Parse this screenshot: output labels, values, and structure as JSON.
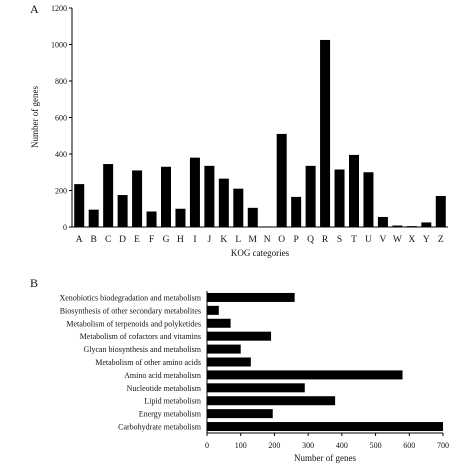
{
  "chart_data": [
    {
      "panel_label": "A",
      "type": "bar",
      "orientation": "vertical",
      "xlabel": "KOG categories",
      "ylabel": "Number of genes",
      "ylim": [
        0,
        1200
      ],
      "yticks": [
        0,
        200,
        400,
        600,
        800,
        1000,
        1200
      ],
      "categories": [
        "A",
        "B",
        "C",
        "D",
        "E",
        "F",
        "G",
        "H",
        "I",
        "J",
        "K",
        "L",
        "M",
        "N",
        "O",
        "P",
        "Q",
        "R",
        "S",
        "T",
        "U",
        "V",
        "W",
        "X",
        "Y",
        "Z"
      ],
      "values": [
        235,
        95,
        345,
        175,
        310,
        85,
        330,
        100,
        380,
        335,
        265,
        210,
        105,
        3,
        510,
        165,
        335,
        1025,
        315,
        395,
        300,
        55,
        8,
        5,
        25,
        170
      ],
      "grid": false,
      "bar_color": "#000000"
    },
    {
      "panel_label": "B",
      "type": "bar",
      "orientation": "horizontal",
      "xlabel": "Number of genes",
      "ylabel": "",
      "xlim": [
        0,
        700
      ],
      "xticks": [
        0,
        100,
        200,
        300,
        400,
        500,
        600,
        700
      ],
      "categories": [
        "Xenobiotics biodegradation and metabolism",
        "Biosynthesis of other secondary metabolites",
        "Metabolism of terpenoids and polyketides",
        "Metabolism of cofactors and vitamins",
        "Glycan biosynthesis and metabolism",
        "Metabolism of other amino acids",
        "Amino acid metabolism",
        "Nucleotide metabolism",
        "Lipid metabolism",
        "Energy metabolism",
        "Carbohydrate metabolism"
      ],
      "values": [
        260,
        35,
        70,
        190,
        100,
        130,
        580,
        290,
        380,
        195,
        700
      ],
      "grid": false,
      "bar_color": "#000000"
    }
  ]
}
